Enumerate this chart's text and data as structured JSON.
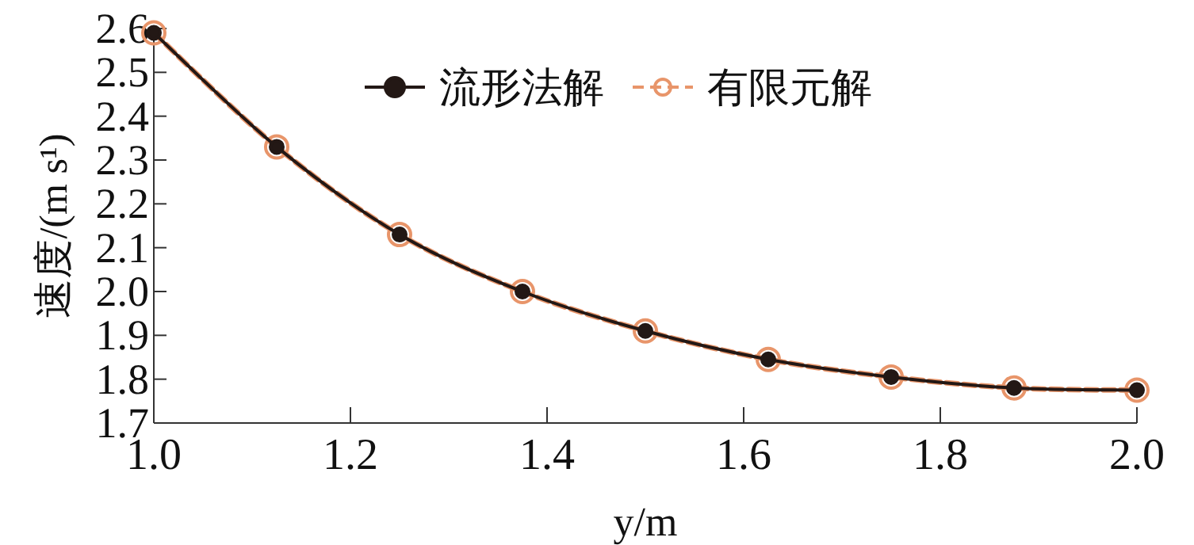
{
  "chart_data": {
    "type": "line",
    "xlabel": "y/m",
    "ylabel": "速度/(m s¹)",
    "x": [
      1.0,
      1.125,
      1.25,
      1.375,
      1.5,
      1.625,
      1.75,
      1.875,
      2.0
    ],
    "series": [
      {
        "name": "流形法解",
        "color": "#231815",
        "line_style": "solid",
        "marker": "circle",
        "values": [
          2.59,
          2.33,
          2.13,
          2.0,
          1.91,
          1.845,
          1.805,
          1.78,
          1.775
        ]
      },
      {
        "name": "有限元解",
        "color": "#e8956a",
        "line_style": "dashed",
        "marker": "circle",
        "values": [
          2.59,
          2.33,
          2.13,
          2.0,
          1.91,
          1.845,
          1.805,
          1.78,
          1.775
        ]
      }
    ],
    "xlim": [
      1.0,
      2.0
    ],
    "xticks": [
      {
        "value": 1.0,
        "label": "1.0"
      },
      1.2,
      1.4,
      1.6,
      1.8,
      {
        "value": 2.0,
        "label": "2.0"
      }
    ],
    "ylim": [
      1.7,
      2.6
    ],
    "yticks": [
      1.7,
      1.8,
      1.9,
      {
        "value": 2.0,
        "label": "2.0"
      },
      2.1,
      2.2,
      2.3,
      2.4,
      2.5,
      2.6
    ],
    "grid": false,
    "legend": "top"
  }
}
